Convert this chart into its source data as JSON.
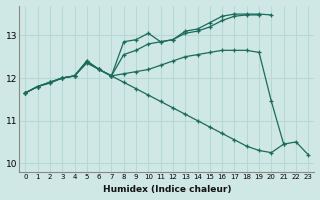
{
  "xlabel": "Humidex (Indice chaleur)",
  "ylabel": "",
  "background_color": "#cfe8e5",
  "line_color": "#1a6b5a",
  "grid_color": "#b8d8d4",
  "xlim": [
    -0.5,
    23.5
  ],
  "ylim": [
    9.8,
    13.7
  ],
  "yticks": [
    10,
    11,
    12,
    13
  ],
  "xticks": [
    0,
    1,
    2,
    3,
    4,
    5,
    6,
    7,
    8,
    9,
    10,
    11,
    12,
    13,
    14,
    15,
    16,
    17,
    18,
    19,
    20,
    21,
    22,
    23
  ],
  "lines": [
    {
      "x": [
        0,
        1,
        2,
        3,
        4,
        5,
        6,
        7,
        8,
        9,
        10,
        11,
        12,
        13,
        14,
        15,
        16,
        17,
        18,
        19,
        20
      ],
      "y": [
        11.65,
        11.8,
        11.9,
        12.0,
        12.05,
        12.4,
        12.2,
        12.05,
        12.85,
        12.9,
        13.05,
        12.85,
        12.9,
        13.1,
        13.15,
        13.3,
        13.45,
        13.5,
        13.5,
        13.5,
        13.48
      ]
    },
    {
      "x": [
        0,
        1,
        2,
        3,
        4,
        5,
        6,
        7,
        8,
        9,
        10,
        11,
        12,
        13,
        14,
        15,
        16,
        17,
        18,
        19
      ],
      "y": [
        11.65,
        11.8,
        11.9,
        12.0,
        12.05,
        12.4,
        12.2,
        12.05,
        12.55,
        12.65,
        12.8,
        12.85,
        12.9,
        13.05,
        13.1,
        13.2,
        13.35,
        13.45,
        13.48,
        13.48
      ]
    },
    {
      "x": [
        0,
        1,
        2,
        3,
        4,
        5,
        6,
        7,
        8,
        9,
        10,
        11,
        12,
        13,
        14,
        15,
        16,
        17,
        18,
        19,
        20,
        21
      ],
      "y": [
        11.65,
        11.8,
        11.9,
        12.0,
        12.05,
        12.35,
        12.2,
        12.05,
        12.1,
        12.15,
        12.2,
        12.3,
        12.4,
        12.5,
        12.55,
        12.6,
        12.65,
        12.65,
        12.65,
        12.6,
        11.45,
        10.45
      ]
    },
    {
      "x": [
        0,
        1,
        2,
        3,
        4,
        5,
        6,
        7,
        8,
        9,
        10,
        11,
        12,
        13,
        14,
        15,
        16,
        17,
        18,
        19,
        20,
        21,
        22,
        23
      ],
      "y": [
        11.65,
        11.8,
        11.88,
        12.0,
        12.05,
        12.38,
        12.2,
        12.05,
        11.9,
        11.75,
        11.6,
        11.45,
        11.3,
        11.15,
        11.0,
        10.85,
        10.7,
        10.55,
        10.4,
        10.3,
        10.25,
        10.45,
        10.5,
        10.2
      ]
    }
  ]
}
